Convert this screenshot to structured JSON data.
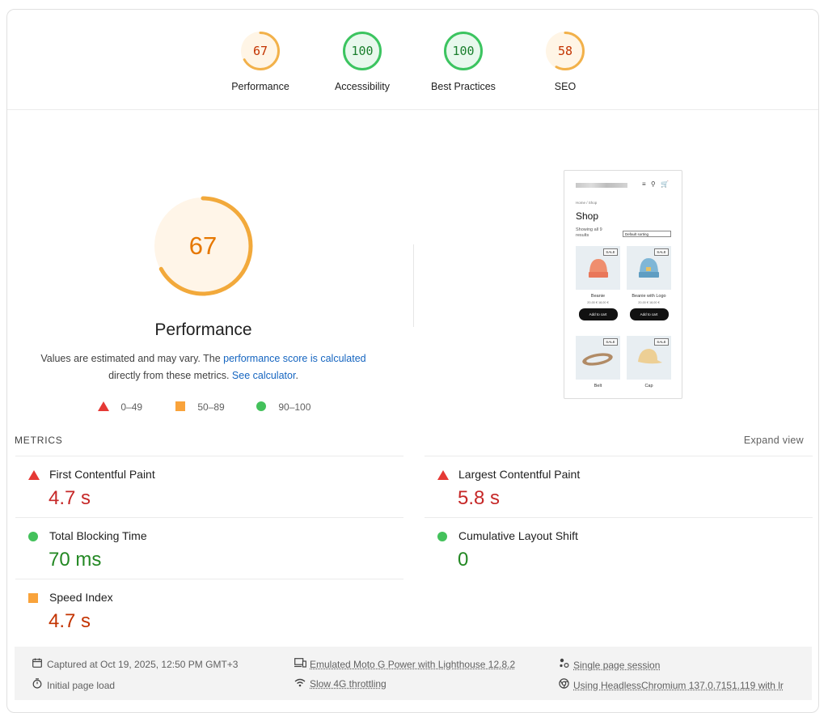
{
  "gauges": [
    {
      "score": "67",
      "label": "Performance",
      "status": "average",
      "fraction": 0.67
    },
    {
      "score": "100",
      "label": "Accessibility",
      "status": "pass",
      "fraction": 1.0
    },
    {
      "score": "100",
      "label": "Best Practices",
      "status": "pass",
      "fraction": 1.0
    },
    {
      "score": "58",
      "label": "SEO",
      "status": "average",
      "fraction": 0.58
    }
  ],
  "performance": {
    "score": "67",
    "fraction": 0.67,
    "title": "Performance",
    "desc_before": "Values are estimated and may vary. The ",
    "desc_link1": "performance score is calculated",
    "desc_middle": " directly from these metrics. ",
    "desc_link2": "See calculator",
    "desc_after": "."
  },
  "legend": {
    "fail": "0–49",
    "average": "50–89",
    "pass": "90–100"
  },
  "screenshot": {
    "breadcrumb": "Home / Shop",
    "heading": "Shop",
    "showing": "Showing all 9 results",
    "sorting": "Default sorting",
    "header_icons": "≡ ⚲ 🛒",
    "products": [
      {
        "name": "Beanie",
        "sale": "SALE",
        "price": "20,00 € 18,00 €",
        "button": "Add to cart"
      },
      {
        "name": "Beanie with Logo",
        "sale": "SALE",
        "price": "20,00 € 18,00 €",
        "button": "Add to cart"
      },
      {
        "name": "Belt",
        "sale": "SALE"
      },
      {
        "name": "Cap",
        "sale": "SALE"
      }
    ]
  },
  "metrics": {
    "heading": "METRICS",
    "expand": "Expand view",
    "items": [
      {
        "title": "First Contentful Paint",
        "value": "4.7 s",
        "status": "fail"
      },
      {
        "title": "Largest Contentful Paint",
        "value": "5.8 s",
        "status": "fail"
      },
      {
        "title": "Total Blocking Time",
        "value": "70 ms",
        "status": "pass"
      },
      {
        "title": "Cumulative Layout Shift",
        "value": "0",
        "status": "pass"
      },
      {
        "title": "Speed Index",
        "value": "4.7 s",
        "status": "average"
      }
    ]
  },
  "footer": {
    "captured": "Captured at Oct 19, 2025, 12:50 PM GMT+3",
    "load": "Initial page load",
    "device": "Emulated Moto G Power with Lighthouse 12.8.2",
    "throttling": "Slow 4G throttling",
    "session": "Single page session",
    "browser": "Using HeadlessChromium 137.0.7151.119 with lr"
  },
  "colors": {
    "pass": "#0cce6b",
    "average": "#ffa400",
    "fail": "#e53935",
    "average_text": "#c33300"
  }
}
